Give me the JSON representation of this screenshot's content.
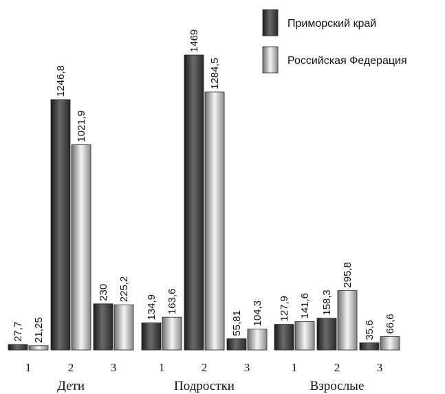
{
  "chart_data": {
    "type": "bar",
    "groups": [
      "Дети",
      "Подростки",
      "Взрослые"
    ],
    "subcategories": [
      "1",
      "2",
      "3"
    ],
    "series": [
      {
        "name": "Приморский край",
        "values": [
          [
            27.7,
            1246.8,
            230
          ],
          [
            134.9,
            1469,
            55.81
          ],
          [
            127.9,
            158.3,
            35.6
          ]
        ],
        "labels": [
          [
            "27,7",
            "1246,8",
            "230"
          ],
          [
            "134,9",
            "1469",
            "55,81"
          ],
          [
            "127,9",
            "158,3",
            "35,6"
          ]
        ],
        "color": "#3f3f3f"
      },
      {
        "name": "Российская Федерация",
        "values": [
          [
            21.25,
            1021.9,
            225.2
          ],
          [
            163.6,
            1284.5,
            104.3
          ],
          [
            141.6,
            295.8,
            66.6
          ]
        ],
        "labels": [
          [
            "21,25",
            "1021,9",
            "225,2"
          ],
          [
            "163,6",
            "1284,5",
            "104,3"
          ],
          [
            "141,6",
            "295,8",
            "66,6"
          ]
        ],
        "color": "#c8c8c8"
      }
    ],
    "ylim": [
      0,
      1469
    ],
    "grid": false,
    "legend_position": "top-right"
  }
}
